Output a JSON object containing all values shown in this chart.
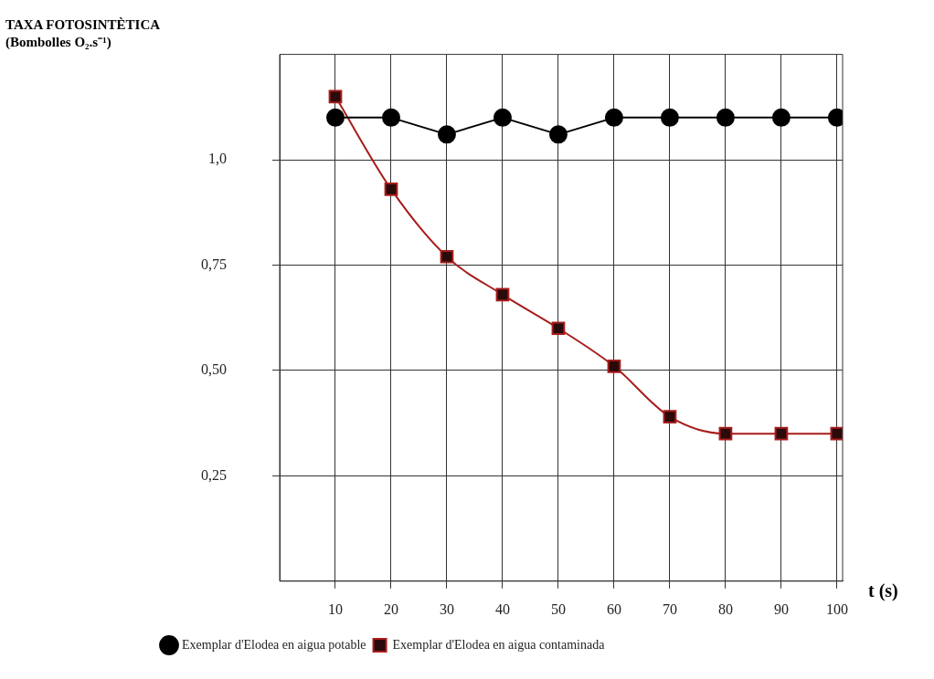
{
  "chart_data": {
    "type": "line",
    "ylabel": "TAXA FOTOSINTÈTICA (Bombolles O₂.s⁻¹)",
    "xlabel": "t (s)",
    "x": [
      10,
      20,
      30,
      40,
      50,
      60,
      70,
      80,
      90,
      100
    ],
    "series": [
      {
        "name": "Exemplar d'Elodea en aigua potable",
        "color": "#000000",
        "marker": "circle",
        "values": [
          1.1,
          1.1,
          1.06,
          1.1,
          1.06,
          1.1,
          1.1,
          1.1,
          1.1,
          1.1
        ]
      },
      {
        "name": "Exemplar d'Elodea en aigua contaminada",
        "color": "#a81c1c",
        "marker": "square",
        "values": [
          1.15,
          0.93,
          0.77,
          0.68,
          0.6,
          0.51,
          0.39,
          0.35,
          0.35,
          0.35
        ]
      }
    ],
    "xlim": [
      0,
      101
    ],
    "xticks": [
      10,
      20,
      30,
      40,
      50,
      60,
      70,
      80,
      90,
      100
    ],
    "ylim": [
      0,
      1.25
    ],
    "yticks": [
      {
        "value": 0.25,
        "label": "0,25"
      },
      {
        "value": 0.5,
        "label": "0,50"
      },
      {
        "value": 0.75,
        "label": "0,75"
      },
      {
        "value": 1.0,
        "label": "1,0"
      }
    ],
    "grid": true,
    "legend": "bottom"
  }
}
